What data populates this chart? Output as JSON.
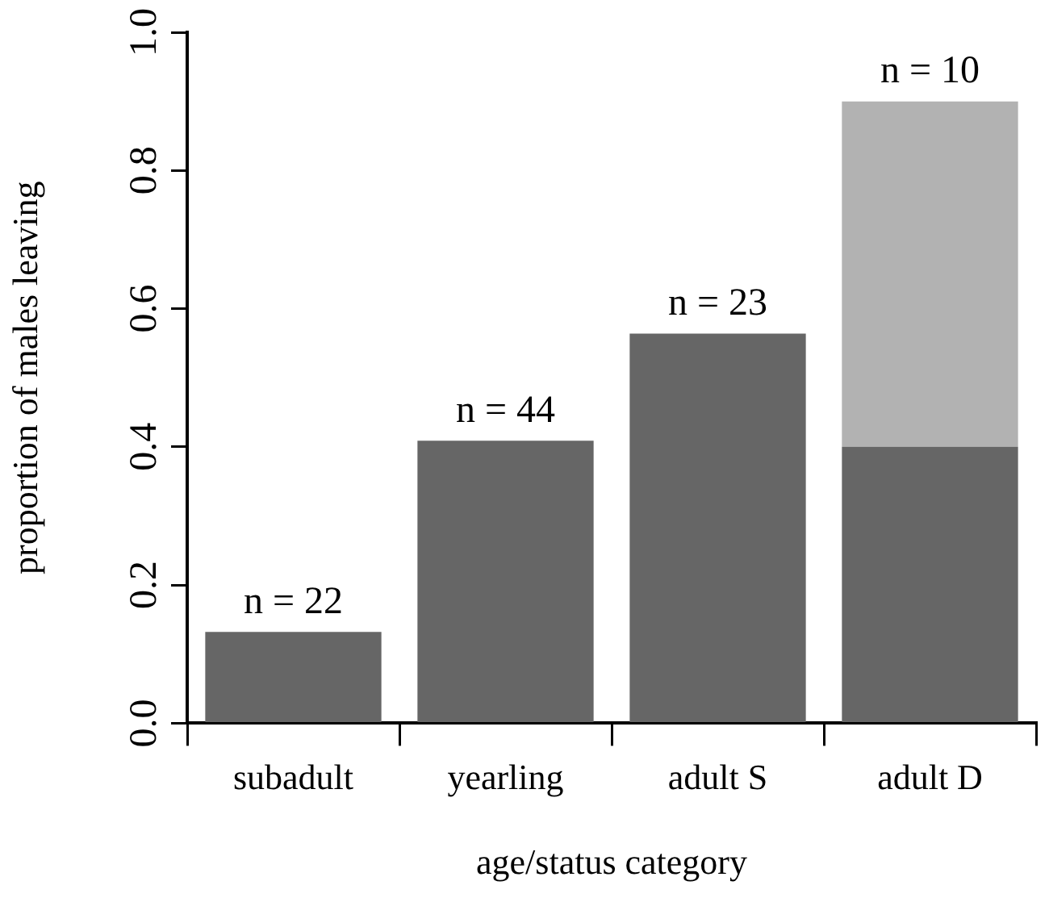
{
  "chart_data": {
    "type": "bar",
    "stacked": true,
    "xlabel": "age/status category",
    "ylabel": "proportion of males leaving",
    "categories": [
      "subadult",
      "yearling",
      "adult S",
      "adult D"
    ],
    "series": [
      {
        "color": "#666666",
        "values": [
          0.132,
          0.409,
          0.564,
          0.4
        ]
      },
      {
        "color": "#b2b2b2",
        "values": [
          null,
          null,
          null,
          0.5
        ]
      }
    ],
    "ylim": [
      0,
      1
    ],
    "yticks": [
      {
        "value": 0,
        "label": "0.0"
      },
      {
        "value": 0.2,
        "label": "0.2"
      },
      {
        "value": 0.4,
        "label": "0.4"
      },
      {
        "value": 0.6,
        "label": "0.6"
      },
      {
        "value": 0.8,
        "label": "0.8"
      },
      {
        "value": 1,
        "label": "1.0"
      }
    ],
    "grid": false,
    "legend": false,
    "annotations": [
      {
        "text": "n = 22",
        "x": "subadult",
        "y": 0.132
      },
      {
        "text": "n = 44",
        "x": "yearling",
        "y": 0.409
      },
      {
        "text": "n = 23",
        "x": "adult S",
        "y": 0.564
      },
      {
        "text": "n = 10",
        "x": "adult D",
        "y": 0.9
      }
    ]
  }
}
